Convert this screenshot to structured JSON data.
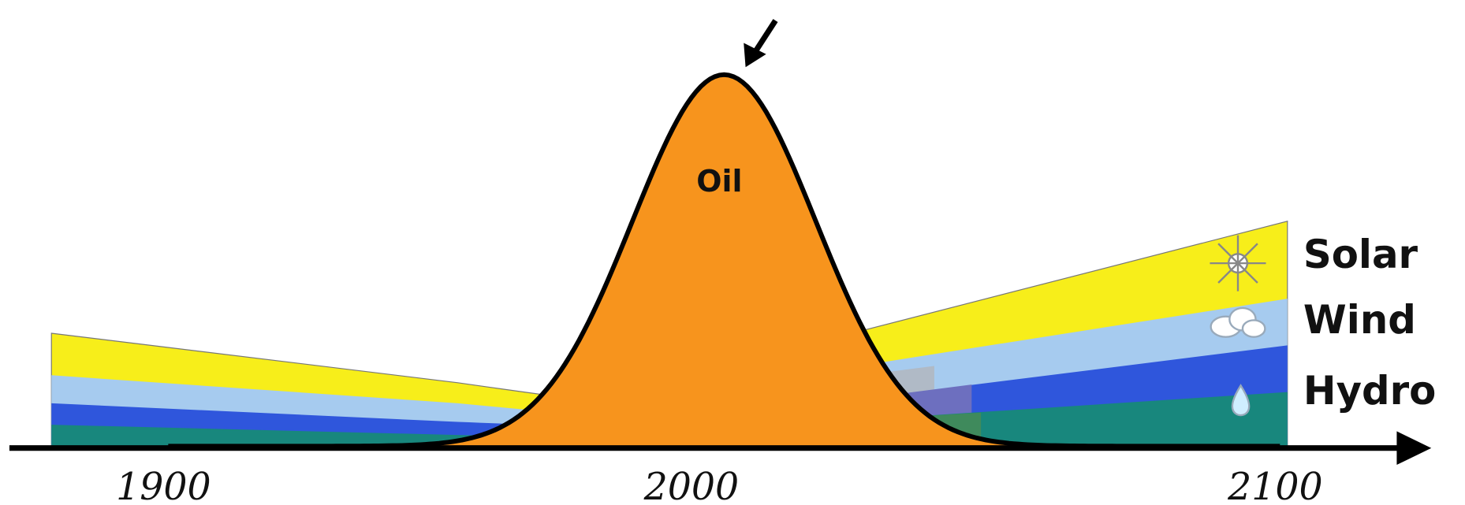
{
  "areas": {
    "oil": "Oil",
    "solar": "Solar",
    "wind": "Wind",
    "hydro": "Hydro"
  },
  "axis": {
    "ticks": [
      "1900",
      "2000",
      "2100"
    ]
  }
}
